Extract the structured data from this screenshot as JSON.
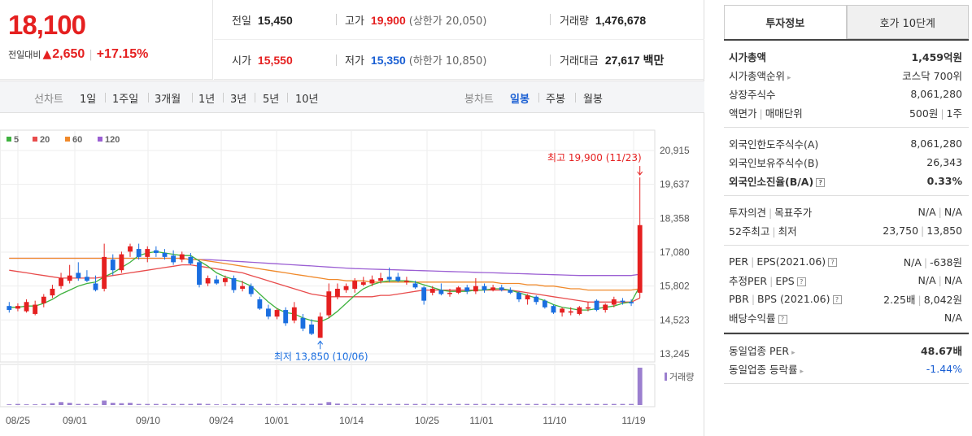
{
  "price": {
    "current": "18,100",
    "change_label": "전일대비",
    "change_arrow": "▲",
    "change_value": "2,650",
    "change_pct": "+17.15%"
  },
  "summary": {
    "prev_label": "전일",
    "prev_value": "15,450",
    "high_label": "고가",
    "high_value": "19,900",
    "upper_limit": "(상한가 20,050)",
    "volume_label": "거래량",
    "volume_value": "1,476,678",
    "open_label": "시가",
    "open_value": "15,550",
    "low_label": "저가",
    "low_value": "15,350",
    "lower_limit": "(하한가 10,850)",
    "amount_label": "거래대금",
    "amount_value": "27,617",
    "amount_unit": "백만"
  },
  "toolbar": {
    "line_chart_label": "선차트",
    "periods": [
      "1일",
      "1주일",
      "3개월",
      "1년",
      "3년",
      "5년",
      "10년"
    ],
    "candle_chart_label": "봉차트",
    "candle_periods": [
      "일봉",
      "주봉",
      "월봉"
    ],
    "active_candle": "일봉"
  },
  "chart_data": {
    "type": "candlestick",
    "legend": [
      {
        "name": "5",
        "color": "#3fb23f"
      },
      {
        "name": "20",
        "color": "#e84c4c"
      },
      {
        "name": "60",
        "color": "#f0892a"
      },
      {
        "name": "120",
        "color": "#9b5fd3"
      }
    ],
    "y_ticks": [
      "20,915",
      "19,637",
      "18,358",
      "17,080",
      "15,802",
      "14,523",
      "13,245"
    ],
    "y_range": [
      13245,
      20915
    ],
    "x_ticks": [
      "08/25",
      "09/01",
      "09/10",
      "09/24",
      "10/01",
      "10/14",
      "10/25",
      "11/01",
      "11/10",
      "11/19"
    ],
    "high_annotation": "최고 19,900 (11/23)",
    "low_annotation": "최저 13,850 (10/06)",
    "volume_label": "거래량",
    "candles": [
      {
        "o": 15050,
        "h": 15200,
        "l": 14800,
        "c": 14900
      },
      {
        "o": 14950,
        "h": 15150,
        "l": 14850,
        "c": 15050
      },
      {
        "o": 14850,
        "h": 15300,
        "l": 14800,
        "c": 15200
      },
      {
        "o": 14750,
        "h": 15250,
        "l": 14700,
        "c": 15100
      },
      {
        "o": 15150,
        "h": 15500,
        "l": 15000,
        "c": 15400
      },
      {
        "o": 15450,
        "h": 15850,
        "l": 15350,
        "c": 15700
      },
      {
        "o": 15800,
        "h": 16300,
        "l": 15700,
        "c": 16100
      },
      {
        "o": 16000,
        "h": 16600,
        "l": 15900,
        "c": 16200
      },
      {
        "o": 16300,
        "h": 16700,
        "l": 16000,
        "c": 16100
      },
      {
        "o": 16150,
        "h": 16400,
        "l": 15950,
        "c": 16000
      },
      {
        "o": 15900,
        "h": 16200,
        "l": 15600,
        "c": 15650
      },
      {
        "o": 15700,
        "h": 17400,
        "l": 15600,
        "c": 16900
      },
      {
        "o": 16800,
        "h": 17000,
        "l": 16200,
        "c": 16400
      },
      {
        "o": 16400,
        "h": 17100,
        "l": 16300,
        "c": 17000
      },
      {
        "o": 17100,
        "h": 17400,
        "l": 16900,
        "c": 17300
      },
      {
        "o": 17200,
        "h": 17400,
        "l": 16800,
        "c": 16900
      },
      {
        "o": 16900,
        "h": 17300,
        "l": 16700,
        "c": 17200
      },
      {
        "o": 17150,
        "h": 17300,
        "l": 16900,
        "c": 17050
      },
      {
        "o": 17050,
        "h": 17200,
        "l": 16800,
        "c": 16900
      },
      {
        "o": 16950,
        "h": 17150,
        "l": 16600,
        "c": 16700
      },
      {
        "o": 16800,
        "h": 17100,
        "l": 16700,
        "c": 17000
      },
      {
        "o": 16900,
        "h": 17050,
        "l": 16600,
        "c": 16650
      },
      {
        "o": 16700,
        "h": 16800,
        "l": 15750,
        "c": 15850
      },
      {
        "o": 15900,
        "h": 16200,
        "l": 15800,
        "c": 16100
      },
      {
        "o": 16050,
        "h": 16200,
        "l": 15850,
        "c": 15900
      },
      {
        "o": 15950,
        "h": 16200,
        "l": 15800,
        "c": 16100
      },
      {
        "o": 16100,
        "h": 16200,
        "l": 15550,
        "c": 15650
      },
      {
        "o": 15700,
        "h": 16000,
        "l": 15600,
        "c": 15800
      },
      {
        "o": 15800,
        "h": 15900,
        "l": 15400,
        "c": 15500
      },
      {
        "o": 15300,
        "h": 15400,
        "l": 14900,
        "c": 14950
      },
      {
        "o": 14950,
        "h": 15100,
        "l": 14550,
        "c": 14650
      },
      {
        "o": 14650,
        "h": 14950,
        "l": 14550,
        "c": 14900
      },
      {
        "o": 14900,
        "h": 15000,
        "l": 14300,
        "c": 14400
      },
      {
        "o": 14500,
        "h": 15200,
        "l": 14400,
        "c": 15000
      },
      {
        "o": 14600,
        "h": 14750,
        "l": 14100,
        "c": 14200
      },
      {
        "o": 14350,
        "h": 14550,
        "l": 13950,
        "c": 14000
      },
      {
        "o": 13850,
        "h": 14800,
        "l": 13850,
        "c": 14650
      },
      {
        "o": 14700,
        "h": 15900,
        "l": 14600,
        "c": 15600
      },
      {
        "o": 15400,
        "h": 15900,
        "l": 15300,
        "c": 15700
      },
      {
        "o": 15650,
        "h": 15900,
        "l": 15550,
        "c": 15800
      },
      {
        "o": 15700,
        "h": 16100,
        "l": 15550,
        "c": 16000
      },
      {
        "o": 15850,
        "h": 16150,
        "l": 15800,
        "c": 15950
      },
      {
        "o": 15900,
        "h": 16200,
        "l": 15800,
        "c": 16050
      },
      {
        "o": 16000,
        "h": 16300,
        "l": 15900,
        "c": 16100
      },
      {
        "o": 16150,
        "h": 16500,
        "l": 15950,
        "c": 16050
      },
      {
        "o": 16150,
        "h": 16300,
        "l": 15950,
        "c": 16000
      },
      {
        "o": 15950,
        "h": 16150,
        "l": 15850,
        "c": 16000
      },
      {
        "o": 15900,
        "h": 16000,
        "l": 15700,
        "c": 15750
      },
      {
        "o": 15750,
        "h": 15800,
        "l": 15100,
        "c": 15250
      },
      {
        "o": 15550,
        "h": 15800,
        "l": 15450,
        "c": 15700
      },
      {
        "o": 15650,
        "h": 15900,
        "l": 15450,
        "c": 15500
      },
      {
        "o": 15500,
        "h": 15700,
        "l": 15400,
        "c": 15550
      },
      {
        "o": 15550,
        "h": 15800,
        "l": 15500,
        "c": 15750
      },
      {
        "o": 15750,
        "h": 15850,
        "l": 15500,
        "c": 15600
      },
      {
        "o": 15600,
        "h": 16100,
        "l": 15500,
        "c": 15800
      },
      {
        "o": 15800,
        "h": 15900,
        "l": 15550,
        "c": 15650
      },
      {
        "o": 15650,
        "h": 15850,
        "l": 15600,
        "c": 15750
      },
      {
        "o": 15750,
        "h": 15850,
        "l": 15600,
        "c": 15650
      },
      {
        "o": 15650,
        "h": 15750,
        "l": 15500,
        "c": 15550
      },
      {
        "o": 15550,
        "h": 15600,
        "l": 15200,
        "c": 15300
      },
      {
        "o": 15300,
        "h": 15500,
        "l": 15100,
        "c": 15450
      },
      {
        "o": 15400,
        "h": 15450,
        "l": 15100,
        "c": 15200
      },
      {
        "o": 15250,
        "h": 15300,
        "l": 14950,
        "c": 15000
      },
      {
        "o": 15050,
        "h": 15100,
        "l": 14750,
        "c": 14800
      },
      {
        "o": 14800,
        "h": 15000,
        "l": 14650,
        "c": 14950
      },
      {
        "o": 14800,
        "h": 15000,
        "l": 14700,
        "c": 14850
      },
      {
        "o": 14750,
        "h": 15050,
        "l": 14700,
        "c": 15000
      },
      {
        "o": 14950,
        "h": 15200,
        "l": 14850,
        "c": 15000
      },
      {
        "o": 15250,
        "h": 15300,
        "l": 14850,
        "c": 14900
      },
      {
        "o": 14900,
        "h": 15150,
        "l": 14800,
        "c": 15100
      },
      {
        "o": 15100,
        "h": 15400,
        "l": 15000,
        "c": 15300
      },
      {
        "o": 15250,
        "h": 15350,
        "l": 15100,
        "c": 15200
      },
      {
        "o": 15200,
        "h": 15300,
        "l": 15050,
        "c": 15150
      },
      {
        "o": 15550,
        "h": 19900,
        "l": 15350,
        "c": 18100
      }
    ],
    "ma5": [
      15000,
      15000,
      15050,
      15050,
      15150,
      15300,
      15500,
      15650,
      15800,
      15900,
      15950,
      16150,
      16300,
      16500,
      16700,
      16950,
      17050,
      17100,
      17050,
      17000,
      16950,
      16950,
      16750,
      16550,
      16300,
      16150,
      16050,
      15950,
      15800,
      15500,
      15200,
      14950,
      14800,
      14750,
      14600,
      14500,
      14450,
      14600,
      14850,
      15150,
      15450,
      15700,
      15850,
      15950,
      16000,
      16000,
      16000,
      15950,
      15850,
      15750,
      15650,
      15600,
      15600,
      15600,
      15650,
      15650,
      15700,
      15700,
      15650,
      15550,
      15450,
      15350,
      15250,
      15100,
      15000,
      14950,
      14900,
      14900,
      14950,
      15000,
      15050,
      15150,
      15200,
      15800
    ],
    "ma20": [
      16400,
      16350,
      16300,
      16250,
      16200,
      16150,
      16100,
      16100,
      16100,
      16100,
      16100,
      16150,
      16200,
      16250,
      16300,
      16350,
      16400,
      16450,
      16500,
      16550,
      16600,
      16600,
      16550,
      16500,
      16450,
      16400,
      16350,
      16300,
      16200,
      16100,
      16000,
      15900,
      15800,
      15700,
      15600,
      15500,
      15450,
      15400,
      15400,
      15400,
      15400,
      15400,
      15400,
      15450,
      15450,
      15500,
      15550,
      15600,
      15650,
      15650,
      15650,
      15650,
      15650,
      15650,
      15650,
      15650,
      15650,
      15650,
      15650,
      15600,
      15550,
      15500,
      15450,
      15400,
      15350,
      15300,
      15250,
      15200,
      15200,
      15200,
      15200,
      15200,
      15200,
      15350
    ],
    "ma60": [
      16850,
      16850,
      16850,
      16850,
      16850,
      16850,
      16850,
      16850,
      16850,
      16850,
      16850,
      16850,
      16850,
      16850,
      16850,
      16850,
      16850,
      16850,
      16850,
      16850,
      16850,
      16800,
      16800,
      16750,
      16700,
      16650,
      16600,
      16550,
      16500,
      16450,
      16400,
      16350,
      16300,
      16250,
      16200,
      16150,
      16100,
      16050,
      16050,
      16000,
      16000,
      16000,
      15950,
      15950,
      15950,
      15950,
      15950,
      15950,
      15950,
      15950,
      15950,
      15950,
      15950,
      15950,
      15950,
      15950,
      15950,
      15900,
      15900,
      15900,
      15850,
      15850,
      15800,
      15800,
      15750,
      15700,
      15700,
      15650,
      15650,
      15650,
      15650,
      15650,
      15650,
      15700
    ],
    "ma120": [
      16850,
      16850,
      16850,
      16850,
      16850,
      16850,
      16850,
      16850,
      16850,
      16850,
      16850,
      16850,
      16850,
      16850,
      16850,
      16850,
      16850,
      16850,
      16850,
      16850,
      16850,
      16800,
      16800,
      16800,
      16780,
      16760,
      16740,
      16720,
      16700,
      16680,
      16660,
      16640,
      16620,
      16600,
      16580,
      16560,
      16540,
      16520,
      16500,
      16480,
      16460,
      16450,
      16440,
      16430,
      16420,
      16410,
      16400,
      16390,
      16380,
      16370,
      16360,
      16350,
      16340,
      16330,
      16320,
      16310,
      16300,
      16290,
      16280,
      16270,
      16260,
      16250,
      16240,
      16230,
      16220,
      16210,
      16200,
      16200,
      16200,
      16200,
      16200,
      16200,
      16200,
      16250
    ],
    "volume": [
      2,
      3,
      2,
      2,
      3,
      5,
      8,
      6,
      3,
      3,
      3,
      12,
      6,
      5,
      6,
      3,
      3,
      3,
      3,
      3,
      3,
      3,
      4,
      3,
      2,
      2,
      3,
      3,
      2,
      3,
      3,
      2,
      3,
      3,
      3,
      3,
      4,
      8,
      4,
      3,
      3,
      3,
      3,
      3,
      3,
      3,
      3,
      3,
      3,
      3,
      3,
      3,
      3,
      3,
      3,
      3,
      3,
      3,
      3,
      3,
      3,
      3,
      3,
      3,
      3,
      3,
      3,
      3,
      3,
      3,
      3,
      3,
      3,
      100
    ]
  },
  "invest_info": {
    "tab_active": "투자정보",
    "tab_inactive": "호가 10단계",
    "group1": [
      {
        "k": "시가총액",
        "v": "1,459억원",
        "bold": true
      },
      {
        "k": "시가총액순위",
        "v": "코스닥 700위",
        "arrow": true
      },
      {
        "k": "상장주식수",
        "v": "8,061,280"
      },
      {
        "k1": "액면가",
        "k2": "매매단위",
        "v1": "500원",
        "v2": "1주"
      }
    ],
    "group2": [
      {
        "k": "외국인한도주식수(A)",
        "v": "8,061,280"
      },
      {
        "k": "외국인보유주식수(B)",
        "v": "26,343"
      },
      {
        "k": "외국인소진율(B/A)",
        "v": "0.33%",
        "bold": true,
        "q": true
      }
    ],
    "group3": [
      {
        "k1": "투자의견",
        "k2": "목표주가",
        "v1": "N/A",
        "v2": "N/A"
      },
      {
        "k1": "52주최고",
        "k2": "최저",
        "v1": "23,750",
        "v2": "13,850"
      }
    ],
    "group4": [
      {
        "k1": "PER",
        "k2": "EPS(2021.06)",
        "v1": "N/A",
        "v2": "-638원"
      },
      {
        "k1": "추정PER",
        "k2": "EPS",
        "v1": "N/A",
        "v2": "N/A"
      },
      {
        "k1": "PBR",
        "k2": "BPS (2021.06)",
        "v1": "2.25배",
        "v2": "8,042원"
      },
      {
        "k": "배당수익률",
        "v": "N/A"
      }
    ],
    "group5": [
      {
        "k": "동일업종 PER",
        "v": "48.67배"
      },
      {
        "k": "동일업종 등락률",
        "v": "-1.44%"
      }
    ]
  }
}
